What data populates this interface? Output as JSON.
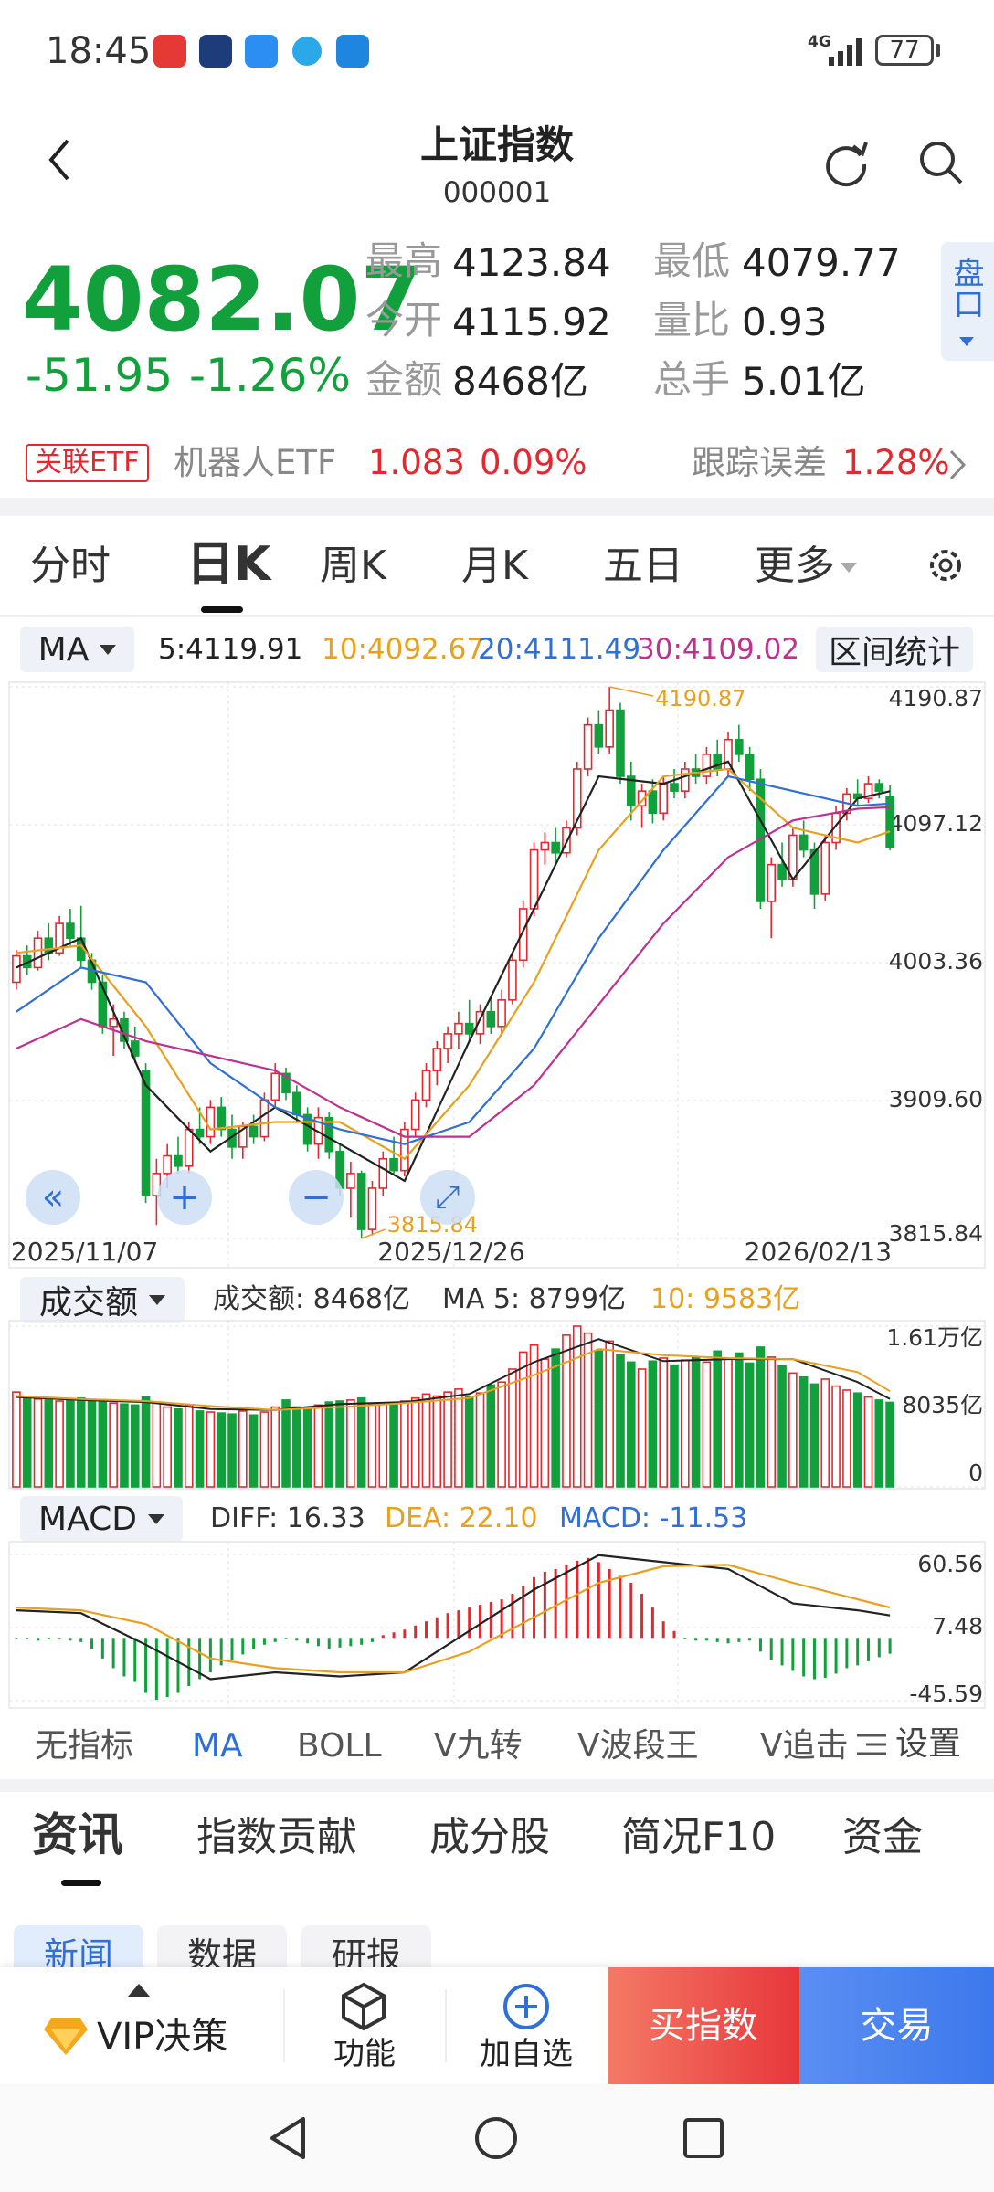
{
  "status_bar": {
    "time": "18:45",
    "network": "4G",
    "battery": "77"
  },
  "header": {
    "title": "上证指数",
    "code": "000001"
  },
  "quote": {
    "price": "4082.07",
    "change": "-51.95",
    "change_pct": "-1.26%",
    "stats": [
      [
        "最高",
        "4123.84"
      ],
      [
        "最低",
        "4079.77"
      ],
      [
        "今开",
        "4115.92"
      ],
      [
        "量比",
        "0.93"
      ],
      [
        "金额",
        "8468亿"
      ],
      [
        "总手",
        "5.01亿"
      ]
    ],
    "side_tab": "盘口"
  },
  "etf": {
    "tag": "关联ETF",
    "name": "机器人ETF",
    "price": "1.083",
    "pct": "0.09%",
    "error_label": "跟踪误差",
    "error": "1.28%"
  },
  "period_tabs": [
    "分时",
    "日K",
    "周K",
    "月K",
    "五日",
    "更多"
  ],
  "active_period": 1,
  "chart_data": {
    "type": "candlestick",
    "indicator": "MA",
    "ma_legend": [
      "5:4119.91",
      "10:4092.67",
      "20:4111.49",
      "30:4109.02"
    ],
    "range_button": "区间统计",
    "up_color": "#e4282f",
    "down_color": "#12a03c",
    "categories": [
      "2025/11/07",
      null,
      null,
      null,
      null,
      null,
      null,
      null,
      null,
      null,
      null,
      null,
      null,
      null,
      null,
      null,
      null,
      null,
      null,
      null,
      null,
      null,
      null,
      null,
      null,
      null,
      null,
      null,
      null,
      null,
      null,
      null,
      null,
      null,
      "2025/12/26",
      null,
      null,
      null,
      null,
      null,
      null,
      null,
      null,
      null,
      null,
      null,
      null,
      null,
      null,
      null,
      null,
      null,
      null,
      null,
      null,
      null,
      null,
      null,
      null,
      null,
      null,
      null,
      null,
      null,
      null,
      null,
      null,
      null,
      "2026/02/13",
      null,
      null,
      null,
      null,
      null,
      null,
      null,
      null,
      null,
      null,
      null,
      null,
      null
    ],
    "candles": [
      [
        3990,
        4012,
        3985,
        4008
      ],
      [
        4008,
        4015,
        3995,
        4000
      ],
      [
        4000,
        4025,
        3998,
        4020
      ],
      [
        4020,
        4030,
        4005,
        4010
      ],
      [
        4010,
        4035,
        4008,
        4030
      ],
      [
        4030,
        4040,
        4015,
        4020
      ],
      [
        4020,
        4042,
        4000,
        4005
      ],
      [
        4005,
        4010,
        3985,
        3990
      ],
      [
        3990,
        3995,
        3955,
        3960
      ],
      [
        3960,
        3975,
        3940,
        3965
      ],
      [
        3965,
        3970,
        3945,
        3950
      ],
      [
        3950,
        3960,
        3935,
        3940
      ],
      [
        3930,
        3935,
        3840,
        3845
      ],
      [
        3845,
        3870,
        3825,
        3860
      ],
      [
        3860,
        3880,
        3850,
        3872
      ],
      [
        3872,
        3885,
        3860,
        3865
      ],
      [
        3865,
        3895,
        3860,
        3890
      ],
      [
        3890,
        3905,
        3880,
        3885
      ],
      [
        3885,
        3910,
        3880,
        3905
      ],
      [
        3905,
        3912,
        3885,
        3890
      ],
      [
        3890,
        3900,
        3870,
        3878
      ],
      [
        3878,
        3895,
        3870,
        3892
      ],
      [
        3892,
        3900,
        3880,
        3885
      ],
      [
        3885,
        3915,
        3882,
        3910
      ],
      [
        3910,
        3935,
        3905,
        3928
      ],
      [
        3928,
        3932,
        3910,
        3915
      ],
      [
        3915,
        3920,
        3895,
        3900
      ],
      [
        3900,
        3905,
        3875,
        3880
      ],
      [
        3880,
        3905,
        3870,
        3898
      ],
      [
        3898,
        3902,
        3870,
        3875
      ],
      [
        3875,
        3880,
        3845,
        3850
      ],
      [
        3850,
        3868,
        3830,
        3860
      ],
      [
        3860,
        3862,
        3815.84,
        3822
      ],
      [
        3822,
        3855,
        3818,
        3850
      ],
      [
        3850,
        3875,
        3845,
        3870
      ],
      [
        3870,
        3885,
        3860,
        3862
      ],
      [
        3862,
        3895,
        3858,
        3890
      ],
      [
        3890,
        3915,
        3885,
        3910
      ],
      [
        3910,
        3935,
        3905,
        3930
      ],
      [
        3930,
        3950,
        3920,
        3945
      ],
      [
        3945,
        3960,
        3935,
        3955
      ],
      [
        3955,
        3970,
        3945,
        3962
      ],
      [
        3962,
        3978,
        3950,
        3955
      ],
      [
        3955,
        3975,
        3948,
        3970
      ],
      [
        3970,
        3980,
        3955,
        3960
      ],
      [
        3960,
        3985,
        3955,
        3978
      ],
      [
        3978,
        4010,
        3975,
        4005
      ],
      [
        4005,
        4045,
        4000,
        4040
      ],
      [
        4040,
        4085,
        4035,
        4080
      ],
      [
        4080,
        4092,
        4070,
        4085
      ],
      [
        4085,
        4095,
        4072,
        4078
      ],
      [
        4078,
        4100,
        4075,
        4095
      ],
      [
        4095,
        4140,
        4090,
        4135
      ],
      [
        4135,
        4170,
        4130,
        4165
      ],
      [
        4165,
        4175,
        4145,
        4150
      ],
      [
        4150,
        4190.87,
        4145,
        4175
      ],
      [
        4175,
        4180,
        4125,
        4130
      ],
      [
        4130,
        4140,
        4100,
        4110
      ],
      [
        4110,
        4125,
        4095,
        4120
      ],
      [
        4120,
        4128,
        4098,
        4105
      ],
      [
        4105,
        4130,
        4100,
        4125
      ],
      [
        4125,
        4135,
        4115,
        4120
      ],
      [
        4120,
        4140,
        4115,
        4135
      ],
      [
        4135,
        4145,
        4125,
        4130
      ],
      [
        4130,
        4150,
        4125,
        4145
      ],
      [
        4145,
        4155,
        4130,
        4135
      ],
      [
        4135,
        4160,
        4130,
        4155
      ],
      [
        4155,
        4165,
        4140,
        4145
      ],
      [
        4145,
        4150,
        4120,
        4128
      ],
      [
        4128,
        4135,
        4040,
        4045
      ],
      [
        4045,
        4075,
        4020,
        4070
      ],
      [
        4070,
        4085,
        4055,
        4060
      ],
      [
        4060,
        4095,
        4055,
        4090
      ],
      [
        4090,
        4100,
        4075,
        4080
      ],
      [
        4080,
        4085,
        4040,
        4050
      ],
      [
        4050,
        4090,
        4045,
        4085
      ],
      [
        4085,
        4110,
        4080,
        4105
      ],
      [
        4105,
        4122,
        4100,
        4118
      ],
      [
        4118,
        4128,
        4110,
        4115
      ],
      [
        4115,
        4130,
        4112,
        4125
      ],
      [
        4125,
        4128,
        4115,
        4120
      ],
      [
        4115.92,
        4123.84,
        4079.77,
        4082.07
      ]
    ],
    "ylim": [
      3815.84,
      4190.87
    ],
    "yticks": [
      4190.87,
      4097.12,
      4003.36,
      {
        "value": 3909.6,
        "label": "3909.60"
      },
      3815.84
    ],
    "grid": true,
    "high_label": "4190.87",
    "low_label": "3815.84",
    "ma_x": [
      0,
      6,
      12,
      18,
      24,
      30,
      36,
      42,
      48,
      54,
      60,
      66,
      72,
      78,
      81
    ],
    "ma_series": [
      {
        "name": "5",
        "color": "#222222",
        "values": [
          4000,
          4020,
          3920,
          3875,
          3905,
          3880,
          3855,
          3950,
          4040,
          4130,
          4125,
          4140,
          4060,
          4115,
          4119.91
        ]
      },
      {
        "name": "10",
        "color": "#e8a020",
        "values": [
          4010,
          4015,
          3960,
          3890,
          3895,
          3895,
          3870,
          3920,
          3990,
          4080,
          4130,
          4135,
          4095,
          4085,
          4092.67
        ]
      },
      {
        "name": "20",
        "color": "#2f6fd6",
        "values": [
          3970,
          4000,
          3990,
          3935,
          3905,
          3890,
          3880,
          3895,
          3945,
          4020,
          4080,
          4130,
          4120,
          4110,
          4111.49
        ]
      },
      {
        "name": "30",
        "color": "#c0308f",
        "values": [
          3945,
          3965,
          3950,
          3940,
          3930,
          3905,
          3885,
          3885,
          3920,
          3975,
          4030,
          4075,
          4100,
          4108,
          4109.02
        ]
      }
    ],
    "volume": {
      "type": "bar",
      "title": "成交额",
      "legend": [
        "成交额: 8468亿",
        "MA 5: 8799亿",
        "10: 9583亿"
      ],
      "legend_colors": [
        "#333333",
        "#333333",
        "#e8a020"
      ],
      "values": [
        9500,
        9000,
        8800,
        8700,
        8600,
        8800,
        8900,
        8600,
        8700,
        8400,
        8300,
        8200,
        9000,
        8500,
        8000,
        7800,
        8200,
        7600,
        7500,
        7400,
        7300,
        7600,
        7200,
        7500,
        8000,
        8700,
        8000,
        7800,
        8200,
        8500,
        8600,
        8700,
        8900,
        8300,
        8400,
        8300,
        8600,
        8900,
        9300,
        9100,
        9500,
        9800,
        9000,
        9400,
        10200,
        10500,
        11800,
        13500,
        14200,
        12800,
        13800,
        15200,
        16100,
        15400,
        13600,
        14600,
        13200,
        12500,
        11800,
        12600,
        12900,
        12200,
        12700,
        13000,
        12500,
        13600,
        12800,
        13400,
        12400,
        14000,
        13000,
        12100,
        11400,
        11000,
        10300,
        10800,
        10100,
        9700,
        9400,
        9000,
        8700,
        8468
      ],
      "ylim": [
        0,
        16100
      ],
      "yticks": [
        {
          "value": 16100,
          "label": "1.61万亿"
        },
        {
          "value": 8035,
          "label": "8035亿"
        },
        0
      ],
      "ma_series": [
        {
          "name": "MA 5",
          "color": "#222222",
          "values": [
            9000,
            8700,
            8500,
            7800,
            7700,
            8300,
            8500,
            9300,
            12500,
            14800,
            12600,
            12800,
            12800,
            10500,
            8799
          ]
        },
        {
          "name": "10",
          "color": "#e8a020",
          "values": [
            9100,
            8800,
            8600,
            8100,
            7700,
            8000,
            8400,
            8900,
            11200,
            13800,
            13200,
            12900,
            12800,
            11500,
            9583
          ]
        }
      ]
    },
    "macd": {
      "type": "bar",
      "title": "MACD",
      "legend": [
        "DIFF: 16.33",
        "DEA: 22.10",
        "MACD: -11.53"
      ],
      "legend_colors": [
        "#333333",
        "#e8a020",
        "#2f6fd6"
      ],
      "values": [
        -1,
        -1,
        -2,
        -1,
        -1,
        -2,
        -3,
        -8,
        -15,
        -22,
        -28,
        -32,
        -40,
        -45,
        -43,
        -40,
        -35,
        -30,
        -25,
        -20,
        -16,
        -12,
        -8,
        -5,
        -3,
        -1,
        -2,
        -4,
        -6,
        -8,
        -7,
        -6,
        -5,
        -3,
        2,
        4,
        6,
        9,
        12,
        15,
        18,
        20,
        22,
        24,
        26,
        28,
        32,
        38,
        44,
        48,
        50,
        53,
        56,
        58,
        55,
        50,
        45,
        40,
        32,
        22,
        12,
        5,
        -1,
        -2,
        -2,
        -3,
        -4,
        -3,
        -2,
        -10,
        -16,
        -20,
        -24,
        -28,
        -30,
        -29,
        -26,
        -22,
        -20,
        -17,
        -14,
        -11.53
      ],
      "ylim": [
        -45.59,
        60.56
      ],
      "yticks": [
        60.56,
        7.48,
        -45.59
      ],
      "series": [
        {
          "name": "DIFF",
          "color": "#222222",
          "values": [
            20,
            18,
            -5,
            -30,
            -25,
            -28,
            -25,
            5,
            35,
            60,
            55,
            50,
            25,
            20,
            16.33
          ]
        },
        {
          "name": "DEA",
          "color": "#e8a020",
          "values": [
            22,
            20,
            10,
            -15,
            -22,
            -25,
            -25,
            -10,
            15,
            40,
            52,
            53,
            40,
            28,
            22.1
          ]
        }
      ]
    }
  },
  "indicators": [
    "无指标",
    "MA",
    "BOLL",
    "V九转",
    "V波段王",
    "V追击"
  ],
  "active_indicator": 1,
  "settings": "设置",
  "info_tabs": [
    "资讯",
    "指数贡献",
    "成分股",
    "简况F10",
    "资金"
  ],
  "sub_tabs": [
    "新闻",
    "数据",
    "研报"
  ],
  "bottom_bar": {
    "vip": "VIP决策",
    "func": "功能",
    "add": "加自选",
    "buy": "买指数",
    "trade": "交易"
  }
}
